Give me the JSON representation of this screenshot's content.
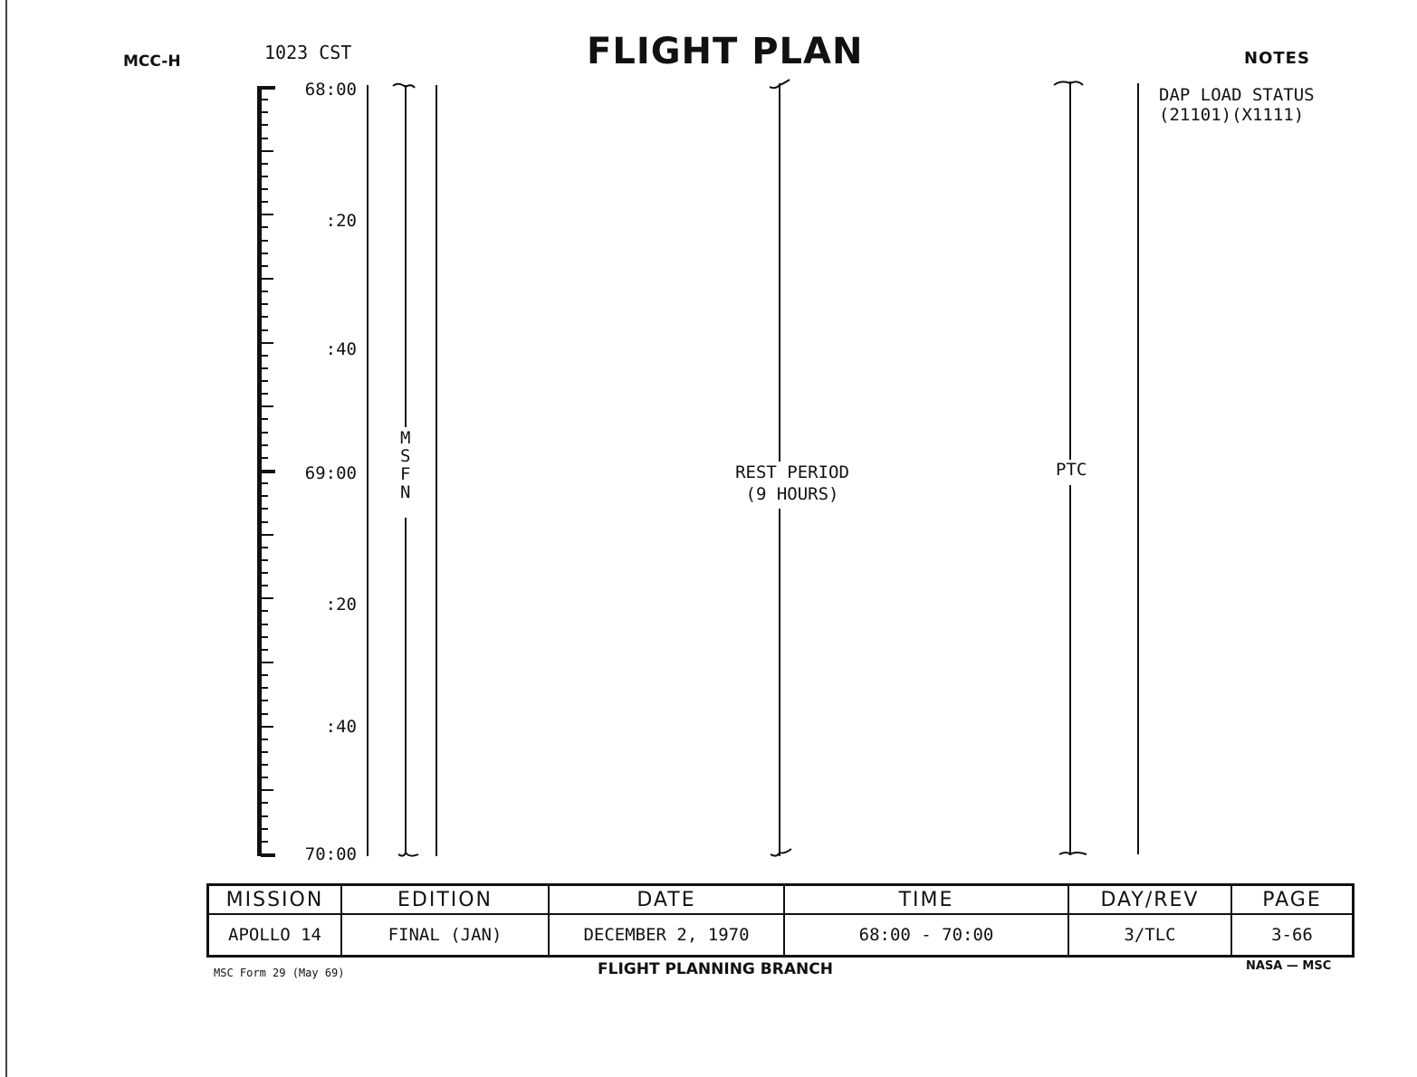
{
  "header": {
    "left_code": "MCC-H",
    "time_cst": "1023 CST",
    "title": "FLIGHT PLAN",
    "notes_label": "NOTES"
  },
  "timeline": {
    "labels": [
      "68:00",
      ":20",
      ":40",
      "69:00",
      ":20",
      ":40",
      "70:00"
    ],
    "start": "68:00",
    "end": "70:00",
    "tick_interval_minutes": 2
  },
  "columns": {
    "msfn": [
      "M",
      "S",
      "F",
      "N"
    ],
    "rest_period": [
      "REST PERIOD",
      "(9 HOURS)"
    ],
    "ptc": "PTC"
  },
  "notes": {
    "line1": "DAP LOAD STATUS",
    "line2": "(21101)(X1111)"
  },
  "footer_table": {
    "headers": [
      "MISSION",
      "EDITION",
      "DATE",
      "TIME",
      "DAY/REV",
      "PAGE"
    ],
    "values": [
      "APOLLO 14",
      "FINAL (JAN)",
      "DECEMBER 2, 1970",
      "68:00 - 70:00",
      "3/TLC",
      "3-66"
    ]
  },
  "footer": {
    "form": "MSC Form 29 (May 69)",
    "branch": "FLIGHT PLANNING BRANCH",
    "agency": "NASA — MSC"
  }
}
